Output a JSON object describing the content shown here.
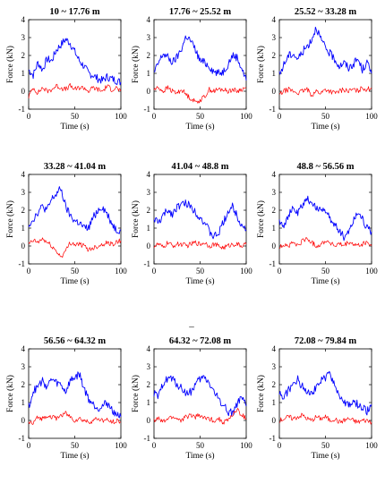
{
  "figure": {
    "separator_text": "–"
  },
  "chart_data": [
    {
      "type": "line",
      "title": "10 ~ 17.76 m",
      "xlabel": "Time (s)",
      "ylabel": "Force (kN)",
      "xlim": [
        0,
        100
      ],
      "ylim": [
        -1,
        4
      ],
      "x": [
        0,
        5,
        10,
        15,
        20,
        25,
        30,
        35,
        40,
        45,
        50,
        55,
        60,
        65,
        70,
        75,
        80,
        85,
        90,
        95,
        100
      ],
      "series": [
        {
          "color": "#0000ff",
          "values": [
            1.2,
            0.9,
            1.6,
            1.2,
            1.8,
            1.7,
            2.3,
            2.6,
            2.9,
            2.7,
            2.2,
            1.7,
            1.4,
            1.0,
            0.9,
            0.7,
            0.6,
            0.8,
            0.7,
            0.6,
            0.5
          ]
        },
        {
          "color": "#ff0000",
          "values": [
            -0.3,
            0.2,
            -0.1,
            0.2,
            0.0,
            0.1,
            0.3,
            0.2,
            0.1,
            0.3,
            0.1,
            0.2,
            0.2,
            0.0,
            0.2,
            0.1,
            0.0,
            0.3,
            0.1,
            0.2,
            0.0
          ]
        }
      ]
    },
    {
      "type": "line",
      "title": "17.76 ~ 25.52 m",
      "xlabel": "Time (s)",
      "ylabel": "Force (kN)",
      "xlim": [
        0,
        100
      ],
      "ylim": [
        -1,
        4
      ],
      "x": [
        0,
        5,
        10,
        15,
        20,
        25,
        30,
        35,
        40,
        45,
        50,
        55,
        60,
        65,
        70,
        75,
        80,
        85,
        90,
        95,
        100
      ],
      "series": [
        {
          "color": "#0000ff",
          "values": [
            1.0,
            1.6,
            2.1,
            1.9,
            1.6,
            1.9,
            2.4,
            3.1,
            2.8,
            2.3,
            1.7,
            1.6,
            1.4,
            1.1,
            1.0,
            1.1,
            1.5,
            2.0,
            1.9,
            1.3,
            0.6
          ]
        },
        {
          "color": "#ff0000",
          "values": [
            0.1,
            0.2,
            0.0,
            0.2,
            0.0,
            -0.1,
            0.1,
            -0.2,
            -0.4,
            -0.6,
            -0.5,
            -0.3,
            0.1,
            0.0,
            0.1,
            0.1,
            0.0,
            0.1,
            0.0,
            0.1,
            0.2
          ]
        }
      ]
    },
    {
      "type": "line",
      "title": "25.52 ~ 33.28 m",
      "xlabel": "Time (s)",
      "ylabel": "Force (kN)",
      "xlim": [
        0,
        100
      ],
      "ylim": [
        -1,
        4
      ],
      "x": [
        0,
        5,
        10,
        15,
        20,
        25,
        30,
        35,
        40,
        45,
        50,
        55,
        60,
        65,
        70,
        75,
        80,
        85,
        90,
        95,
        100
      ],
      "series": [
        {
          "color": "#0000ff",
          "values": [
            0.9,
            1.5,
            2.0,
            2.1,
            1.8,
            2.2,
            2.5,
            2.9,
            3.6,
            2.9,
            2.4,
            2.1,
            1.8,
            1.4,
            1.6,
            1.3,
            1.5,
            1.8,
            1.2,
            1.6,
            1.0
          ]
        },
        {
          "color": "#ff0000",
          "values": [
            -0.2,
            0.0,
            0.1,
            0.0,
            -0.1,
            0.0,
            0.1,
            -0.2,
            0.0,
            -0.1,
            0.1,
            0.0,
            -0.1,
            0.0,
            0.1,
            0.0,
            0.1,
            0.0,
            0.2,
            0.1,
            0.2
          ]
        }
      ]
    },
    {
      "type": "line",
      "title": "33.28 ~ 41.04 m",
      "xlabel": "Time (s)",
      "ylabel": "Force (kN)",
      "xlim": [
        0,
        100
      ],
      "ylim": [
        -1,
        4
      ],
      "x": [
        0,
        5,
        10,
        15,
        20,
        25,
        30,
        35,
        40,
        45,
        50,
        55,
        60,
        65,
        70,
        75,
        80,
        85,
        90,
        95,
        100
      ],
      "series": [
        {
          "color": "#0000ff",
          "values": [
            1.2,
            1.5,
            1.9,
            2.2,
            2.0,
            2.6,
            2.9,
            3.2,
            2.2,
            1.7,
            1.4,
            1.3,
            1.0,
            1.0,
            1.6,
            2.0,
            2.2,
            1.8,
            1.3,
            0.9,
            0.9
          ]
        },
        {
          "color": "#ff0000",
          "values": [
            0.1,
            0.3,
            0.2,
            0.4,
            0.2,
            0.0,
            -0.3,
            -0.6,
            -0.3,
            0.2,
            0.1,
            0.1,
            0.0,
            -0.2,
            -0.1,
            0.0,
            0.1,
            0.2,
            0.1,
            0.2,
            0.3
          ]
        }
      ]
    },
    {
      "type": "line",
      "title": "41.04 ~ 48.8 m",
      "xlabel": "Time (s)",
      "ylabel": "Force (kN)",
      "xlim": [
        0,
        100
      ],
      "ylim": [
        -1,
        4
      ],
      "x": [
        0,
        5,
        10,
        15,
        20,
        25,
        30,
        35,
        40,
        45,
        50,
        55,
        60,
        65,
        70,
        75,
        80,
        85,
        90,
        95,
        100
      ],
      "series": [
        {
          "color": "#0000ff",
          "values": [
            1.5,
            1.3,
            1.7,
            2.0,
            1.8,
            2.2,
            2.3,
            2.4,
            2.2,
            1.9,
            1.6,
            1.3,
            0.8,
            0.5,
            0.7,
            1.3,
            1.9,
            2.2,
            1.7,
            1.2,
            0.9
          ]
        },
        {
          "color": "#ff0000",
          "values": [
            0.0,
            0.1,
            -0.1,
            0.2,
            0.0,
            0.1,
            0.1,
            0.0,
            0.1,
            0.2,
            0.1,
            0.2,
            0.0,
            0.1,
            0.0,
            -0.1,
            0.0,
            0.1,
            0.1,
            0.0,
            0.1
          ]
        }
      ]
    },
    {
      "type": "line",
      "title": "48.8 ~ 56.56 m",
      "xlabel": "Time (s)",
      "ylabel": "Force (kN)",
      "xlim": [
        0,
        100
      ],
      "ylim": [
        -1,
        4
      ],
      "x": [
        0,
        5,
        10,
        15,
        20,
        25,
        30,
        35,
        40,
        45,
        50,
        55,
        60,
        65,
        70,
        75,
        80,
        85,
        90,
        95,
        100
      ],
      "series": [
        {
          "color": "#0000ff",
          "values": [
            1.4,
            1.2,
            1.7,
            2.1,
            1.8,
            2.3,
            2.6,
            2.5,
            2.0,
            2.2,
            1.9,
            1.5,
            1.2,
            0.9,
            0.5,
            0.8,
            1.4,
            1.9,
            1.6,
            1.0,
            0.8
          ]
        },
        {
          "color": "#ff0000",
          "values": [
            -0.1,
            0.1,
            0.0,
            0.2,
            0.0,
            0.3,
            0.4,
            0.2,
            0.0,
            0.1,
            0.3,
            0.2,
            0.0,
            0.1,
            0.0,
            0.2,
            0.1,
            0.0,
            0.1,
            0.2,
            0.0
          ]
        }
      ]
    },
    {
      "type": "line",
      "title": "56.56 ~ 64.32 m",
      "xlabel": "Time (s)",
      "ylabel": "Force (kN)",
      "xlim": [
        0,
        100
      ],
      "ylim": [
        -1,
        4
      ],
      "x": [
        0,
        5,
        10,
        15,
        20,
        25,
        30,
        35,
        40,
        45,
        50,
        55,
        60,
        65,
        70,
        75,
        80,
        85,
        90,
        95,
        100
      ],
      "series": [
        {
          "color": "#0000ff",
          "values": [
            0.8,
            1.6,
            1.9,
            2.2,
            1.9,
            2.3,
            2.1,
            2.0,
            1.6,
            2.2,
            2.4,
            2.6,
            1.8,
            1.2,
            0.9,
            0.7,
            0.8,
            1.0,
            0.6,
            0.4,
            0.2
          ]
        },
        {
          "color": "#ff0000",
          "values": [
            -0.1,
            -0.2,
            0.2,
            0.1,
            0.3,
            0.2,
            0.1,
            0.3,
            0.4,
            0.2,
            0.0,
            0.1,
            0.0,
            -0.1,
            0.0,
            0.1,
            0.0,
            0.0,
            -0.1,
            0.0,
            -0.1
          ]
        }
      ]
    },
    {
      "type": "line",
      "title": "64.32 ~ 72.08 m",
      "xlabel": "Time (s)",
      "ylabel": "Force (kN)",
      "xlim": [
        0,
        100
      ],
      "ylim": [
        -1,
        4
      ],
      "x": [
        0,
        5,
        10,
        15,
        20,
        25,
        30,
        35,
        40,
        45,
        50,
        55,
        60,
        65,
        70,
        75,
        80,
        85,
        90,
        95,
        100
      ],
      "series": [
        {
          "color": "#0000ff",
          "values": [
            1.5,
            1.3,
            2.1,
            2.4,
            2.3,
            2.0,
            1.8,
            1.5,
            1.6,
            2.0,
            2.3,
            2.4,
            2.1,
            1.6,
            1.2,
            0.9,
            0.5,
            0.4,
            0.9,
            1.2,
            0.8
          ]
        },
        {
          "color": "#ff0000",
          "values": [
            0.0,
            0.1,
            -0.1,
            0.1,
            0.2,
            0.1,
            0.0,
            0.2,
            0.3,
            0.2,
            0.3,
            0.1,
            0.1,
            0.0,
            0.1,
            -0.1,
            0.0,
            0.3,
            0.6,
            0.3,
            0.1
          ]
        }
      ]
    },
    {
      "type": "line",
      "title": "72.08 ~ 79.84 m",
      "xlabel": "Time (s)",
      "ylabel": "Force (kN)",
      "xlim": [
        0,
        100
      ],
      "ylim": [
        -1,
        4
      ],
      "x": [
        0,
        5,
        10,
        15,
        20,
        25,
        30,
        35,
        40,
        45,
        50,
        55,
        60,
        65,
        70,
        75,
        80,
        85,
        90,
        95,
        100
      ],
      "series": [
        {
          "color": "#0000ff",
          "values": [
            1.5,
            1.3,
            1.7,
            2.0,
            2.3,
            1.9,
            1.7,
            1.6,
            1.8,
            2.2,
            2.4,
            2.6,
            2.0,
            1.4,
            1.0,
            0.8,
            1.0,
            0.9,
            0.7,
            0.5,
            0.9
          ]
        },
        {
          "color": "#ff0000",
          "values": [
            0.0,
            0.1,
            0.2,
            0.1,
            0.2,
            0.3,
            0.1,
            0.0,
            0.2,
            0.1,
            0.2,
            0.0,
            0.1,
            -0.1,
            0.0,
            0.1,
            0.0,
            -0.1,
            0.0,
            0.0,
            -0.1
          ]
        }
      ]
    }
  ]
}
